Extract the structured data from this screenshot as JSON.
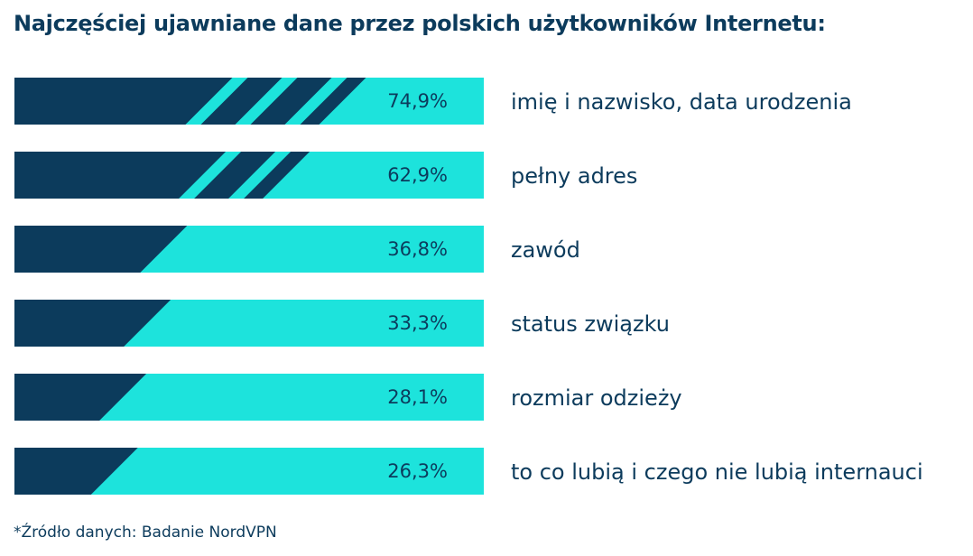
{
  "title": "Najczęściej ujawniane dane przez polskich użytkowników Internetu:",
  "footer": "*Źródło danych: Badanie NordVPN",
  "colors": {
    "navy": "#0c3b5c",
    "cyan": "#1de3dc",
    "text": "#0c3b5c"
  },
  "chart_data": {
    "type": "bar",
    "orientation": "horizontal",
    "categories": [
      "imię i nazwisko, data urodzenia",
      "pełny adres",
      "zawód",
      "status związku",
      "rozmiar odzieży",
      "to co lubią i czego nie lubią internauci"
    ],
    "values": [
      74.9,
      62.9,
      36.8,
      33.3,
      28.1,
      26.3
    ],
    "value_labels": [
      "74,9%",
      "62,9%",
      "36,8%",
      "33,3%",
      "28,1%",
      "26,3%"
    ],
    "unit": "%",
    "xlim": [
      0,
      100
    ],
    "grid": false,
    "legend": "none"
  }
}
